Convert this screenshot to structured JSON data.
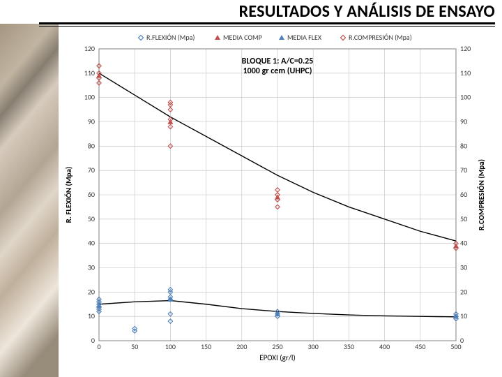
{
  "title": "RESULTADOS Y ANÁLISIS DE ENSAYO",
  "legend": {
    "s1": "R.FLEXIÓN (Mpa)",
    "s2": "MEDIA COMP",
    "s3": "MEDIA FLEX",
    "s4": "R.COMPRESIÓN (Mpa)"
  },
  "block_label_1": "BLOQUE 1: A/C=0.25",
  "block_label_2": "1000 gr cem (UHPC)",
  "x_axis_title": "EPOXI (gr/l)",
  "y_left_title": "R. FLEXIÓN (Mpa)",
  "y_right_title": "R.COMPRESIÓN (Mpa)",
  "chart": {
    "type": "scatter-with-trendlines",
    "xlim": [
      0,
      500
    ],
    "ylim": [
      0,
      120
    ],
    "xtick_step": 50,
    "ytick_step": 10,
    "xticks": [
      "0",
      "50",
      "100",
      "150",
      "200",
      "250",
      "300",
      "350",
      "400",
      "450",
      "500"
    ],
    "yticks": [
      "0",
      "10",
      "20",
      "30",
      "40",
      "50",
      "60",
      "70",
      "80",
      "90",
      "100",
      "110",
      "120"
    ],
    "grid_color": "#bfbfbf",
    "border_color": "#808080",
    "background_color": "#ffffff",
    "colors": {
      "flex_points": "#4f81bd",
      "comp_points": "#c0504d",
      "media_comp": "#c0504d",
      "media_flex": "#4f81bd"
    },
    "flex_points": [
      [
        0,
        14
      ],
      [
        0,
        15
      ],
      [
        0,
        13
      ],
      [
        0,
        16
      ],
      [
        0,
        12
      ],
      [
        0,
        17
      ],
      [
        50,
        5
      ],
      [
        50,
        4
      ],
      [
        100,
        18
      ],
      [
        100,
        20
      ],
      [
        100,
        21
      ],
      [
        100,
        17
      ],
      [
        100,
        11
      ],
      [
        100,
        8
      ],
      [
        250,
        12
      ],
      [
        250,
        11
      ],
      [
        250,
        10
      ],
      [
        500,
        10
      ],
      [
        500,
        9
      ],
      [
        500,
        11
      ]
    ],
    "comp_points": [
      [
        0,
        113
      ],
      [
        0,
        108
      ],
      [
        0,
        110
      ],
      [
        0,
        106
      ],
      [
        100,
        98
      ],
      [
        100,
        95
      ],
      [
        100,
        97
      ],
      [
        100,
        91
      ],
      [
        100,
        88
      ],
      [
        100,
        80
      ],
      [
        250,
        60
      ],
      [
        250,
        62
      ],
      [
        250,
        58
      ],
      [
        250,
        55
      ],
      [
        500,
        40
      ],
      [
        500,
        38
      ]
    ],
    "media_comp_tri": [
      [
        0,
        109
      ],
      [
        100,
        90
      ],
      [
        250,
        59
      ],
      [
        500,
        39
      ]
    ],
    "media_flex_tri": [
      [
        0,
        14.5
      ],
      [
        100,
        17
      ],
      [
        250,
        11
      ],
      [
        500,
        10
      ]
    ],
    "trend_comp_curve": [
      [
        0,
        110
      ],
      [
        50,
        101
      ],
      [
        100,
        92
      ],
      [
        150,
        84
      ],
      [
        200,
        76
      ],
      [
        250,
        68
      ],
      [
        300,
        61
      ],
      [
        350,
        55
      ],
      [
        400,
        50
      ],
      [
        450,
        45
      ],
      [
        500,
        41
      ]
    ],
    "trend_flex_curve": [
      [
        0,
        15
      ],
      [
        50,
        16
      ],
      [
        100,
        16.5
      ],
      [
        150,
        15
      ],
      [
        200,
        13.2
      ],
      [
        250,
        12
      ],
      [
        300,
        11.2
      ],
      [
        350,
        10.6
      ],
      [
        400,
        10.2
      ],
      [
        450,
        10
      ],
      [
        500,
        9.8
      ]
    ],
    "marker_size": 3.2,
    "tri_size": 4,
    "line_width": 1.4,
    "font_tick": 10,
    "font_axis": 11,
    "font_block": 12
  }
}
